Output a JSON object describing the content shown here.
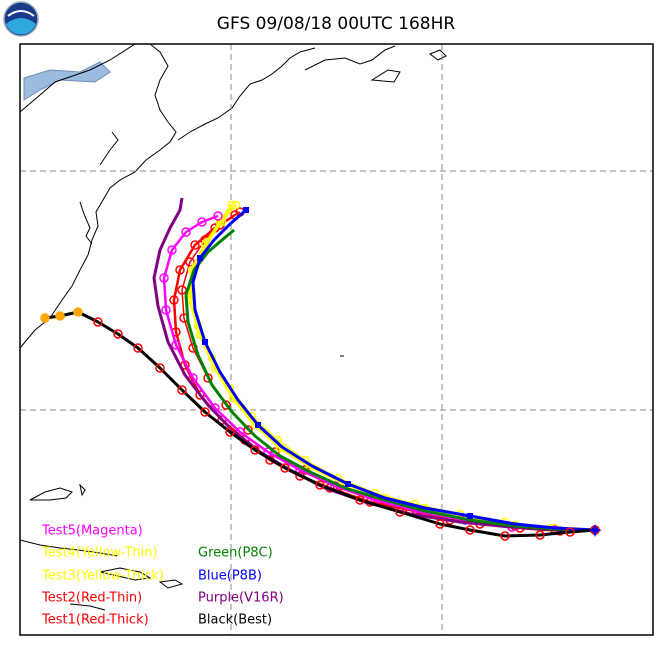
{
  "title": "GFS 09/08/18 00UTC 168HR",
  "legend": [
    {
      "label": "Test5(Magenta)",
      "color": "#ff00ff"
    },
    {
      "label": "Test4(Yellow-Thin)",
      "color": "#ffff00"
    },
    {
      "label": "Test3(Yellow-Thick)",
      "color": "#ffff00"
    },
    {
      "label": "Test2(Red-Thin)",
      "color": "#ff0000"
    },
    {
      "label": "Test1(Red-Thick)",
      "color": "#ff0000"
    },
    {
      "label": "Green(P8C)",
      "color": "#008000"
    },
    {
      "label": "Blue(P8B)",
      "color": "#0000ff"
    },
    {
      "label": "Purple(V16R)",
      "color": "#800080"
    },
    {
      "label": "Black(Best)",
      "color": "#000000"
    }
  ]
}
